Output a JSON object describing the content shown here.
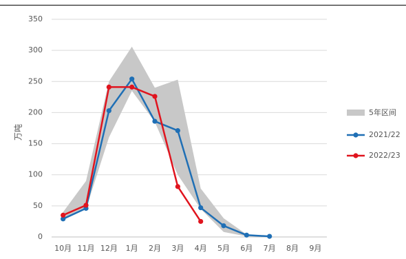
{
  "chart_data": {
    "type": "line",
    "title": "",
    "ylabel": "万吨",
    "xlabel": "",
    "ylim": [
      0,
      350
    ],
    "yticks": [
      0,
      50,
      100,
      150,
      200,
      250,
      300,
      350
    ],
    "categories": [
      "10月",
      "11月",
      "12月",
      "1月",
      "2月",
      "3月",
      "4月",
      "5月",
      "6月",
      "7月",
      "8月",
      "9月"
    ],
    "band": {
      "name": "5年区间",
      "color": "#c8c8c8",
      "upper": [
        40,
        90,
        250,
        306,
        240,
        253,
        78,
        30,
        4,
        2,
        null,
        null
      ],
      "lower": [
        28,
        45,
        160,
        235,
        185,
        100,
        45,
        8,
        1,
        0,
        null,
        null
      ]
    },
    "series": [
      {
        "name": "2021/22",
        "color": "#1f6fb5",
        "values": [
          29,
          46,
          203,
          254,
          186,
          171,
          47,
          18,
          3,
          1,
          null,
          null
        ]
      },
      {
        "name": "2022/23",
        "color": "#e0141e",
        "values": [
          35,
          51,
          241,
          241,
          226,
          81,
          25,
          null,
          null,
          null,
          null,
          null
        ]
      }
    ],
    "grid": true,
    "legend_position": "right"
  }
}
